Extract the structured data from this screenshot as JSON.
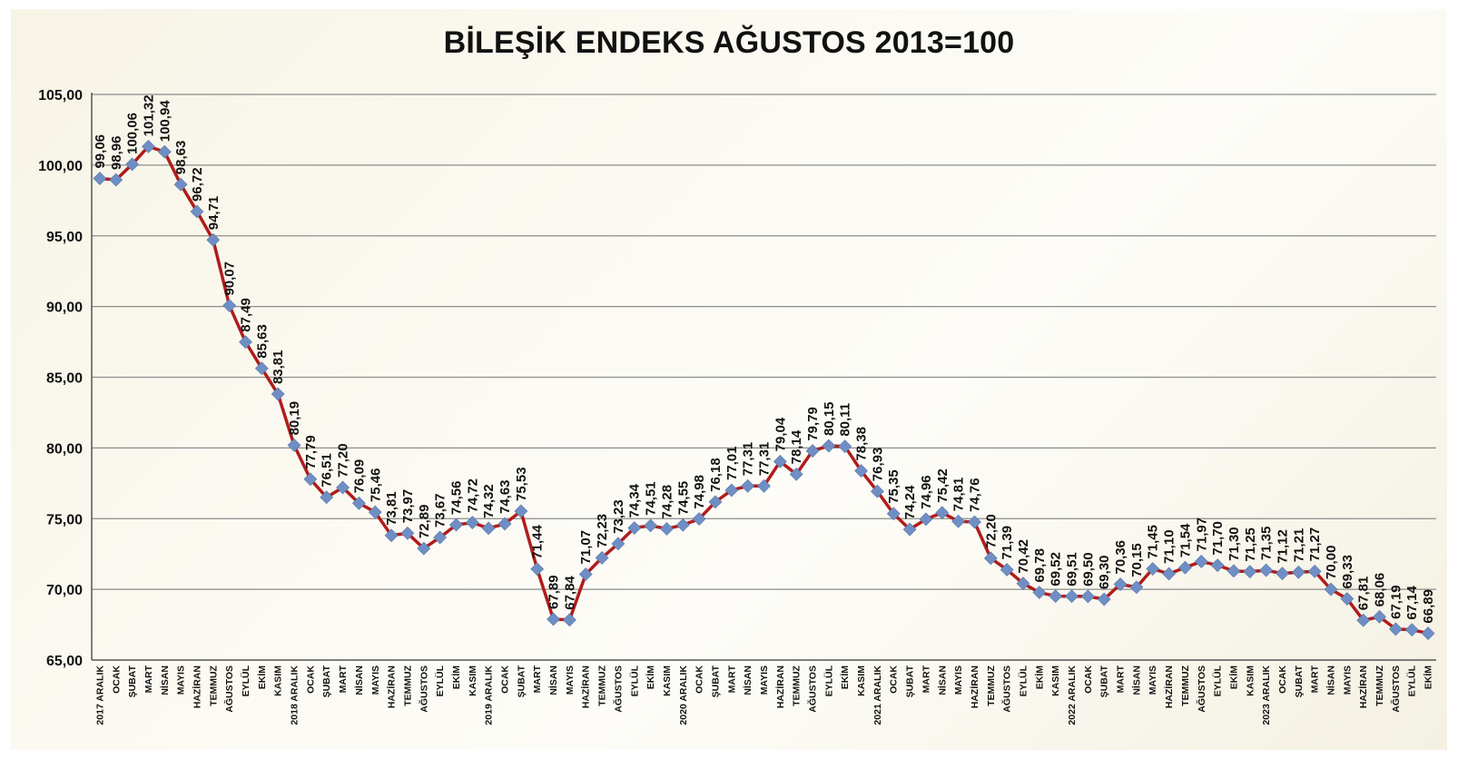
{
  "chart_data": {
    "type": "line",
    "title": "BİLEŞİK ENDEKS AĞUSTOS 2013=100",
    "xlabel": "",
    "ylabel": "",
    "ylim": [
      65,
      105
    ],
    "yticks": [
      "65,00",
      "70,00",
      "75,00",
      "80,00",
      "85,00",
      "90,00",
      "95,00",
      "100,00",
      "105,00"
    ],
    "grid": true,
    "legend": "none",
    "colors": {
      "line": "#b01c1c",
      "marker": "#6f8fc4",
      "grid": "#8c8c8c",
      "axis": "#555555"
    },
    "categories": [
      "2017 ARALIK",
      "OCAK",
      "ŞUBAT",
      "MART",
      "NİSAN",
      "MAYIS",
      "HAZİRAN",
      "TEMMUZ",
      "AĞUSTOS",
      "EYLÜL",
      "EKİM",
      "KASIM",
      "2018 ARALIK",
      "OCAK",
      "ŞUBAT",
      "MART",
      "NİSAN",
      "MAYIS",
      "HAZİRAN",
      "TEMMUZ",
      "AĞUSTOS",
      "EYLÜL",
      "EKİM",
      "KASIM",
      "2019 ARALIK",
      "OCAK",
      "ŞUBAT",
      "MART",
      "NİSAN",
      "MAYIS",
      "HAZİRAN",
      "TEMMUZ",
      "AĞUSTOS",
      "EYLÜL",
      "EKİM",
      "KASIM",
      "2020 ARALIK",
      "OCAK",
      "ŞUBAT",
      "MART",
      "NİSAN",
      "MAYIS",
      "HAZİRAN",
      "TEMMUZ",
      "AĞUSTOS",
      "EYLÜL",
      "EKİM",
      "KASIM",
      "2021 ARALIK",
      "OCAK",
      "ŞUBAT",
      "MART",
      "NİSAN",
      "MAYIS",
      "HAZİRAN",
      "TEMMUZ",
      "AĞUSTOS",
      "EYLÜL",
      "EKİM",
      "KASIM",
      "2022 ARALIK",
      "OCAK",
      "ŞUBAT",
      "MART",
      "NİSAN",
      "MAYIS",
      "HAZİRAN",
      "TEMMUZ",
      "AĞUSTOS",
      "EYLÜL",
      "EKİM",
      "KASIM",
      "2023 ARALIK",
      "OCAK",
      "ŞUBAT",
      "MART",
      "NİSAN",
      "MAYIS",
      "HAZİRAN",
      "TEMMUZ",
      "AĞUSTOS",
      "EYLÜL",
      "EKİM"
    ],
    "values": [
      99.06,
      98.96,
      100.06,
      101.32,
      100.94,
      98.63,
      96.72,
      94.71,
      90.07,
      87.49,
      85.63,
      83.81,
      80.19,
      77.79,
      76.51,
      77.2,
      76.09,
      75.46,
      73.81,
      73.97,
      72.89,
      73.67,
      74.56,
      74.72,
      74.32,
      74.63,
      75.53,
      71.44,
      67.89,
      67.84,
      71.07,
      72.23,
      73.23,
      74.34,
      74.51,
      74.28,
      74.55,
      74.98,
      76.18,
      77.01,
      77.31,
      77.31,
      79.04,
      78.14,
      79.79,
      80.15,
      80.11,
      78.38,
      76.93,
      75.35,
      74.24,
      74.96,
      75.42,
      74.81,
      74.76,
      72.2,
      71.39,
      70.42,
      69.78,
      69.52,
      69.51,
      69.5,
      69.3,
      70.36,
      70.15,
      71.45,
      71.1,
      71.54,
      71.97,
      71.7,
      71.3,
      71.25,
      71.35,
      71.12,
      71.21,
      71.27,
      70.0,
      69.33,
      67.81,
      68.06,
      67.19,
      67.14,
      66.89
    ],
    "value_labels": [
      "99,06",
      "98,96",
      "100,06",
      "101,32",
      "100,94",
      "98,63",
      "96,72",
      "94,71",
      "90,07",
      "87,49",
      "85,63",
      "83,81",
      "80,19",
      "77,79",
      "76,51",
      "77,20",
      "76,09",
      "75,46",
      "73,81",
      "73,97",
      "72,89",
      "73,67",
      "74,56",
      "74,72",
      "74,32",
      "74,63",
      "75,53",
      "71,44",
      "67,89",
      "67,84",
      "71,07",
      "72,23",
      "73,23",
      "74,34",
      "74,51",
      "74,28",
      "74,55",
      "74,98",
      "76,18",
      "77,01",
      "77,31",
      "77,31",
      "79,04",
      "78,14",
      "79,79",
      "80,15",
      "80,11",
      "78,38",
      "76,93",
      "75,35",
      "74,24",
      "74,96",
      "75,42",
      "74,81",
      "74,76",
      "72,20",
      "71,39",
      "70,42",
      "69,78",
      "69,52",
      "69,51",
      "69,50",
      "69,30",
      "70,36",
      "70,15",
      "71,45",
      "71,10",
      "71,54",
      "71,97",
      "71,70",
      "71,30",
      "71,25",
      "71,35",
      "71,12",
      "71,21",
      "71,27",
      "70,00",
      "69,33",
      "67,81",
      "68,06",
      "67,19",
      "67,14",
      "66,89"
    ]
  }
}
